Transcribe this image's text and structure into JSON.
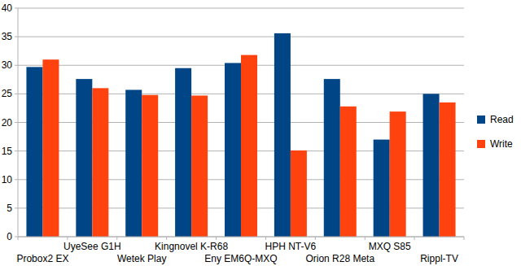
{
  "chart_data": {
    "type": "bar",
    "categories": [
      "Probox2 EX",
      "UyeSee G1H",
      "Wetek Play",
      "Kingnovel K-R68",
      "Eny EM6Q-MXQ",
      "HPH NT-V6",
      "Orion R28 Meta",
      "MXQ S85",
      "Rippl-TV"
    ],
    "series": [
      {
        "name": "Read",
        "color": "#004586",
        "values": [
          29.7,
          27.6,
          25.7,
          29.5,
          30.4,
          35.6,
          27.6,
          17.0,
          25.0
        ]
      },
      {
        "name": "Write",
        "color": "#ff420e",
        "values": [
          31.0,
          26.0,
          24.8,
          24.7,
          31.8,
          15.1,
          22.8,
          21.9,
          23.5
        ]
      }
    ],
    "ylim": [
      0,
      40
    ],
    "yticks": [
      0,
      5,
      10,
      15,
      20,
      25,
      30,
      35,
      40
    ],
    "grid": true,
    "legend": "right"
  }
}
